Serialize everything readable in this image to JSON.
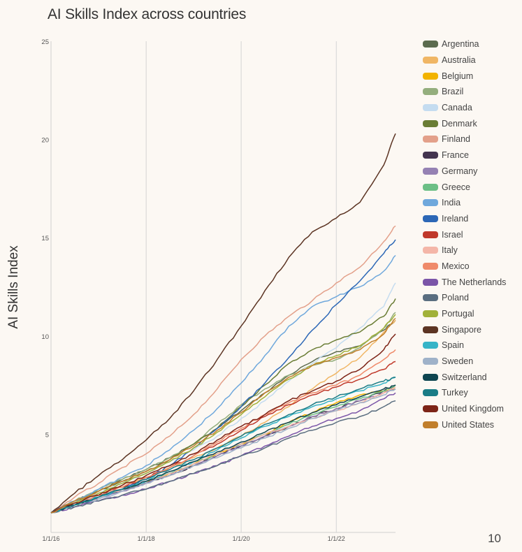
{
  "page": {
    "title": "AI Skills Index across countries",
    "page_number": "10"
  },
  "chart_data": {
    "type": "line",
    "title": "AI Skills Index across countries",
    "xlabel": "",
    "ylabel": "AI Skills Index",
    "xlim": [
      "2016-01-01",
      "2023-04-01"
    ],
    "ylim": [
      0,
      25
    ],
    "x_ticks": [
      "1/1/16",
      "1/1/18",
      "1/1/20",
      "1/1/22"
    ],
    "y_ticks": [
      "5",
      "10",
      "15",
      "20",
      "25"
    ],
    "grid": "vertical",
    "legend_position": "right",
    "dates": [
      "2016-01-01",
      "2016-07-01",
      "2017-01-01",
      "2017-07-01",
      "2018-01-01",
      "2018-07-01",
      "2019-01-01",
      "2019-07-01",
      "2020-01-01",
      "2020-07-01",
      "2021-01-01",
      "2021-07-01",
      "2022-01-01",
      "2022-07-01",
      "2023-01-01",
      "2023-04-01"
    ],
    "series": [
      {
        "name": "Argentina",
        "color": "#5b6b4e",
        "values": [
          1.0,
          1.6,
          2.1,
          2.7,
          3.2,
          3.8,
          4.5,
          5.3,
          6.2,
          7.1,
          8.0,
          8.7,
          9.2,
          9.5,
          10.3,
          10.8
        ]
      },
      {
        "name": "Australia",
        "color": "#f0b665",
        "values": [
          1.0,
          1.5,
          2.0,
          2.4,
          2.8,
          3.3,
          3.8,
          4.3,
          4.9,
          5.6,
          6.4,
          7.3,
          8.1,
          8.9,
          10.2,
          10.8
        ]
      },
      {
        "name": "Belgium",
        "color": "#f2b300",
        "values": [
          1.0,
          1.4,
          1.8,
          2.2,
          2.6,
          3.0,
          3.5,
          4.0,
          4.5,
          5.0,
          5.6,
          6.1,
          6.6,
          7.0,
          7.2,
          7.3
        ]
      },
      {
        "name": "Brazil",
        "color": "#94ae7d",
        "values": [
          1.0,
          1.6,
          2.2,
          2.7,
          3.2,
          3.8,
          4.5,
          5.5,
          6.5,
          7.3,
          8.0,
          8.5,
          8.8,
          9.4,
          10.4,
          11.2
        ]
      },
      {
        "name": "Canada",
        "color": "#c4dcf0",
        "values": [
          1.0,
          1.5,
          2.0,
          2.5,
          3.0,
          3.6,
          4.2,
          4.9,
          5.8,
          6.7,
          7.7,
          8.6,
          9.4,
          10.4,
          11.5,
          12.7
        ]
      },
      {
        "name": "Denmark",
        "color": "#6a7d35",
        "values": [
          1.0,
          1.6,
          2.1,
          2.6,
          3.1,
          3.7,
          4.5,
          5.3,
          6.4,
          7.5,
          8.6,
          9.3,
          9.8,
          10.2,
          11.0,
          11.9
        ]
      },
      {
        "name": "Finland",
        "color": "#e3a08a",
        "values": [
          1.0,
          1.8,
          2.5,
          3.3,
          4.0,
          4.9,
          6.0,
          7.3,
          8.8,
          10.0,
          11.0,
          11.8,
          12.7,
          13.5,
          14.8,
          15.6
        ]
      },
      {
        "name": "France",
        "color": "#43344f",
        "values": [
          1.0,
          1.4,
          1.8,
          2.1,
          2.5,
          2.9,
          3.4,
          3.9,
          4.4,
          4.9,
          5.4,
          5.9,
          6.3,
          6.7,
          7.2,
          7.5
        ]
      },
      {
        "name": "Germany",
        "color": "#9581b3",
        "values": [
          1.0,
          1.4,
          1.7,
          2.1,
          2.5,
          2.9,
          3.4,
          3.9,
          4.4,
          4.9,
          5.4,
          5.9,
          6.3,
          6.7,
          7.1,
          7.3
        ]
      },
      {
        "name": "Greece",
        "color": "#6cbf86",
        "values": [
          1.0,
          1.4,
          1.8,
          2.2,
          2.6,
          3.0,
          3.5,
          4.0,
          4.5,
          5.0,
          5.5,
          6.0,
          6.4,
          6.8,
          7.2,
          7.5
        ]
      },
      {
        "name": "India",
        "color": "#6fa8dc",
        "values": [
          1.0,
          1.6,
          2.2,
          2.8,
          3.4,
          4.2,
          5.2,
          6.3,
          7.6,
          9.0,
          10.5,
          11.5,
          12.0,
          12.5,
          13.3,
          14.1
        ]
      },
      {
        "name": "Ireland",
        "color": "#2c67b6",
        "values": [
          1.0,
          1.4,
          1.8,
          2.2,
          2.7,
          3.4,
          4.3,
          5.3,
          6.4,
          7.6,
          8.9,
          10.3,
          11.6,
          12.8,
          14.2,
          14.9
        ]
      },
      {
        "name": "Israel",
        "color": "#c0392b",
        "values": [
          1.0,
          1.4,
          1.9,
          2.3,
          2.8,
          3.3,
          3.9,
          4.5,
          5.2,
          5.9,
          6.5,
          7.0,
          7.4,
          7.8,
          8.3,
          8.7
        ]
      },
      {
        "name": "Italy",
        "color": "#f4b6a8",
        "values": [
          1.0,
          1.4,
          1.8,
          2.2,
          2.6,
          3.0,
          3.5,
          4.0,
          4.5,
          5.0,
          5.4,
          5.8,
          6.2,
          6.6,
          7.1,
          7.4
        ]
      },
      {
        "name": "Mexico",
        "color": "#ef8a6a",
        "values": [
          1.0,
          1.4,
          1.9,
          2.3,
          2.8,
          3.3,
          3.9,
          4.6,
          5.3,
          6.0,
          6.6,
          7.1,
          7.5,
          8.0,
          8.8,
          9.3
        ]
      },
      {
        "name": "The Netherlands",
        "color": "#7b55a8",
        "values": [
          1.0,
          1.3,
          1.6,
          1.9,
          2.2,
          2.6,
          3.0,
          3.4,
          3.9,
          4.4,
          4.9,
          5.4,
          5.8,
          6.2,
          6.8,
          7.1
        ]
      },
      {
        "name": "Poland",
        "color": "#5a6e80",
        "values": [
          1.0,
          1.3,
          1.6,
          1.9,
          2.2,
          2.6,
          3.0,
          3.4,
          3.9,
          4.3,
          4.8,
          5.2,
          5.6,
          5.9,
          6.4,
          6.7
        ]
      },
      {
        "name": "Portugal",
        "color": "#a1b13a",
        "values": [
          1.0,
          1.5,
          2.0,
          2.5,
          3.0,
          3.6,
          4.3,
          5.1,
          6.0,
          6.9,
          7.8,
          8.5,
          9.0,
          9.5,
          10.4,
          11.1
        ]
      },
      {
        "name": "Singapore",
        "color": "#5c3423",
        "values": [
          1.0,
          2.0,
          2.9,
          3.7,
          4.7,
          5.8,
          7.2,
          8.8,
          10.5,
          12.3,
          14.0,
          15.3,
          16.0,
          16.8,
          18.7,
          20.3
        ]
      },
      {
        "name": "Spain",
        "color": "#36b4c7",
        "values": [
          1.0,
          1.4,
          1.8,
          2.2,
          2.6,
          3.1,
          3.6,
          4.2,
          4.8,
          5.4,
          5.9,
          6.4,
          6.8,
          7.2,
          7.6,
          7.9
        ]
      },
      {
        "name": "Sweden",
        "color": "#9fb2c9",
        "values": [
          1.0,
          1.4,
          1.7,
          2.1,
          2.5,
          2.9,
          3.4,
          3.8,
          4.3,
          4.8,
          5.3,
          5.8,
          6.2,
          6.6,
          7.0,
          7.3
        ]
      },
      {
        "name": "Switzerland",
        "color": "#0e4550",
        "values": [
          1.0,
          1.4,
          1.8,
          2.2,
          2.6,
          3.1,
          3.6,
          4.1,
          4.6,
          5.1,
          5.6,
          6.1,
          6.5,
          6.9,
          7.3,
          7.5
        ]
      },
      {
        "name": "Turkey",
        "color": "#1a7c86",
        "values": [
          1.0,
          1.4,
          1.8,
          2.2,
          2.7,
          3.2,
          3.7,
          4.3,
          4.9,
          5.5,
          6.0,
          6.5,
          6.9,
          7.3,
          7.7,
          7.9
        ]
      },
      {
        "name": "United Kingdom",
        "color": "#7d2417",
        "values": [
          1.0,
          1.5,
          1.9,
          2.4,
          2.9,
          3.4,
          4.0,
          4.7,
          5.4,
          6.0,
          6.7,
          7.2,
          7.7,
          8.3,
          9.3,
          10.1
        ]
      },
      {
        "name": "United States",
        "color": "#c17f2c",
        "values": [
          1.0,
          1.6,
          2.1,
          2.6,
          3.1,
          3.7,
          4.4,
          5.2,
          6.1,
          7.1,
          7.9,
          8.5,
          8.9,
          9.3,
          10.1,
          10.9
        ]
      }
    ]
  }
}
